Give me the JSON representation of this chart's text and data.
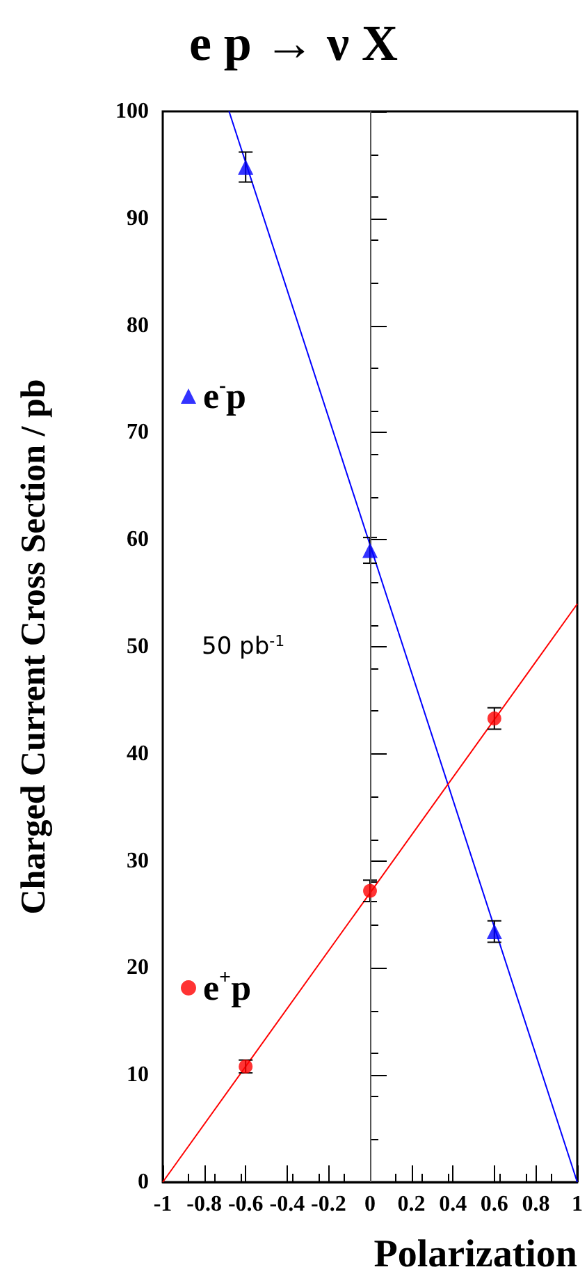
{
  "chart_data": {
    "type": "scatter",
    "title": "e p → ν X",
    "xlabel": "Polarization",
    "ylabel": "Charged Current Cross Section / pb",
    "xlim": [
      -1,
      1
    ],
    "xticks": [
      -1,
      -0.8,
      -0.6,
      -0.4,
      -0.2,
      0,
      0.2,
      0.4,
      0.6,
      0.8,
      1
    ],
    "ylim": [
      0,
      100
    ],
    "yticks": [
      0,
      10,
      20,
      30,
      40,
      50,
      60,
      70,
      80,
      90,
      100
    ],
    "x": [
      -0.6,
      0,
      0.6
    ],
    "series": [
      {
        "name": "e$^{-}$p",
        "color": "#0000ff",
        "marker": "triangle",
        "values": [
          94.8,
          59.0,
          23.4
        ],
        "errors": [
          1.4,
          1.2,
          1.0
        ]
      },
      {
        "name": "e$^{+}$p",
        "color": "#ff0000",
        "marker": "circle",
        "values": [
          10.8,
          27.2,
          43.3
        ],
        "errors": [
          0.6,
          1.0,
          1.0
        ]
      },
      {
        "type": "line",
        "color": "#0000ff",
        "x": [
          -0.68,
          1
        ],
        "values": [
          100,
          0
        ],
        "marker": "none"
      },
      {
        "type": "line",
        "color": "#ff0000",
        "x": [
          -1,
          1
        ],
        "values": [
          0,
          54
        ],
        "marker": "none"
      }
    ],
    "ref_lines": [
      {
        "axis": "x",
        "value": 0,
        "color": "#555555"
      }
    ],
    "annotations": [
      "50 pb$^{-1}$"
    ],
    "legend": "left",
    "grid": false
  }
}
